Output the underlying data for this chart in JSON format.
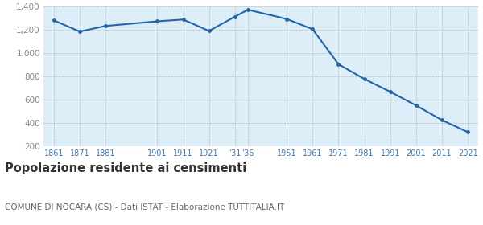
{
  "years": [
    1861,
    1871,
    1881,
    1901,
    1911,
    1921,
    1931,
    1936,
    1951,
    1961,
    1971,
    1981,
    1991,
    2001,
    2011,
    2021
  ],
  "population": [
    1283,
    1187,
    1235,
    1275,
    1290,
    1192,
    1315,
    1374,
    1295,
    1207,
    906,
    779,
    669,
    551,
    425,
    322
  ],
  "line_color": "#2266aa",
  "fill_color": "#ddeef8",
  "marker_color": "#2266aa",
  "bg_color": "#ffffff",
  "grid_color": "#bbbbbb",
  "title": "Popolazione residente ai censimenti",
  "subtitle": "COMUNE DI NOCARA (CS) - Dati ISTAT - Elaborazione TUTTITALIA.IT",
  "ylim": [
    200,
    1400
  ],
  "yticks": [
    200,
    400,
    600,
    800,
    1000,
    1200,
    1400
  ],
  "x_tick_positions": [
    1861,
    1871,
    1881,
    1901,
    1911,
    1921,
    1931,
    1936,
    1951,
    1961,
    1971,
    1981,
    1991,
    2001,
    2011,
    2021
  ],
  "x_tick_labels": [
    "1861",
    "1871",
    "1881",
    "1901",
    "1911",
    "1921",
    "’31",
    "’36",
    "1951",
    "1961",
    "1971",
    "1981",
    "1991",
    "2001",
    "2011",
    "2021"
  ],
  "title_fontsize": 10.5,
  "subtitle_fontsize": 7.5,
  "tick_label_color": "#4477aa",
  "ytick_label_color": "#888888"
}
